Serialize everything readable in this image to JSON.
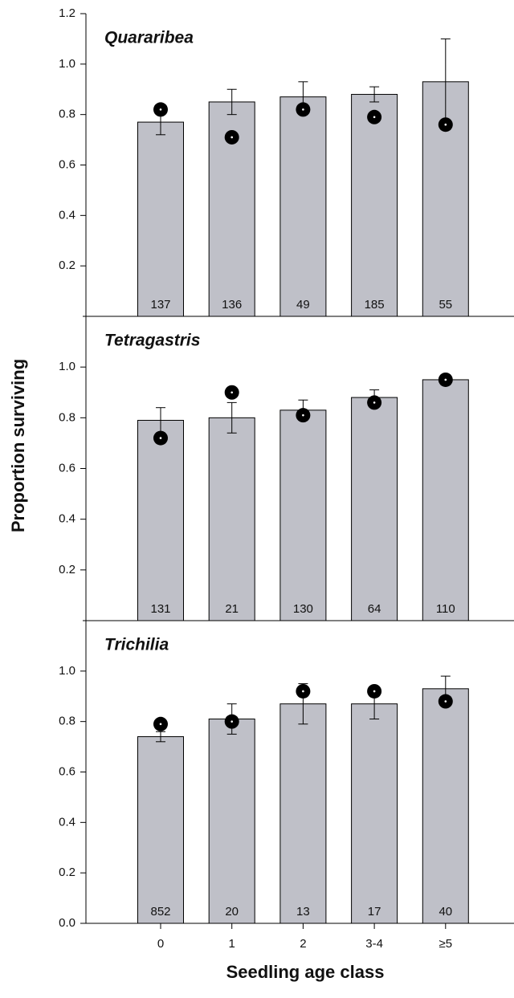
{
  "chart_data": [
    {
      "type": "bar",
      "title": "Quararibea",
      "categories": [
        null,
        null,
        null,
        null,
        null
      ],
      "values": [
        0.77,
        0.85,
        0.87,
        0.88,
        0.93
      ],
      "errors": [
        0.05,
        0.05,
        0.06,
        0.03,
        0.17
      ],
      "points": [
        0.82,
        0.71,
        0.82,
        0.79,
        0.76
      ],
      "counts": [
        137,
        136,
        49,
        185,
        55
      ],
      "color": "#bfc0c8",
      "ylim": [
        0,
        1.2
      ],
      "yticks": [
        0.2,
        0.4,
        0.6,
        0.8,
        {
          "value": 1,
          "label": "1.0"
        },
        1.2
      ]
    },
    {
      "type": "bar",
      "title": "Tetragastris",
      "ylabel": "Proportion surviving",
      "categories": [
        null,
        null,
        null,
        null,
        null
      ],
      "values": [
        0.79,
        0.8,
        0.83,
        0.88,
        0.95
      ],
      "errors": [
        0.05,
        0.06,
        0.04,
        0.03,
        0.02
      ],
      "points": [
        0.72,
        0.9,
        0.81,
        0.86,
        0.95
      ],
      "counts": [
        131,
        21,
        130,
        64,
        110
      ],
      "color": "#bfc0c8",
      "ylim": [
        0,
        1.2
      ],
      "yticks": [
        0.2,
        0.4,
        0.6,
        0.8,
        {
          "value": 1,
          "label": "1.0"
        }
      ]
    },
    {
      "type": "bar",
      "title": "Trichilia",
      "xlabel": "Seedling age class",
      "categories": [
        "0",
        "1",
        "2",
        "3-4",
        "≥5"
      ],
      "values": [
        0.74,
        0.81,
        0.87,
        0.87,
        0.93
      ],
      "errors": [
        0.02,
        0.06,
        0.08,
        0.06,
        0.05
      ],
      "points": [
        0.79,
        0.8,
        0.92,
        0.92,
        0.88
      ],
      "counts": [
        852,
        20,
        13,
        17,
        40
      ],
      "color": "#bfc0c8",
      "ylim": [
        0,
        1.2
      ],
      "yticks": [
        {
          "value": 0,
          "label": "0.0"
        },
        0.2,
        0.4,
        0.6,
        0.8,
        {
          "value": 1,
          "label": "1.0"
        }
      ]
    }
  ]
}
